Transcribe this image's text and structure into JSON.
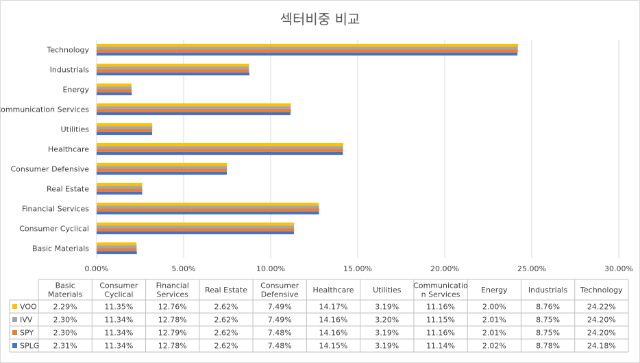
{
  "chart_data": {
    "type": "bar",
    "orientation": "horizontal",
    "title": "섹터비중 비교",
    "xlim": [
      0,
      30
    ],
    "x_ticks": [
      "0.00%",
      "5.00%",
      "10.00%",
      "15.00%",
      "20.00%",
      "25.00%",
      "30.00%"
    ],
    "grid": "vertical gridlines",
    "legend": "data table, left column",
    "categories": [
      "Basic Materials",
      "Consumer Cyclical",
      "Financial Services",
      "Real Estate",
      "Consumer Defensive",
      "Healthcare",
      "Utilities",
      "Communication Services",
      "Energy",
      "Industrials",
      "Technology"
    ],
    "table_headers": [
      "Basic Materials",
      "Consumer Cyclical",
      "Financial Services",
      "Real Estate",
      "Consumer Defensive",
      "Healthcare",
      "Utilities",
      "Communicatio n Services",
      "Energy",
      "Industrials",
      "Technology"
    ],
    "series": [
      {
        "name": "VOO",
        "color": "#FFC000",
        "values": [
          2.29,
          11.35,
          12.76,
          2.62,
          7.49,
          14.17,
          3.19,
          11.16,
          2.0,
          8.76,
          24.22
        ],
        "labels": [
          "2.29%",
          "11.35%",
          "12.76%",
          "2.62%",
          "7.49%",
          "14.17%",
          "3.19%",
          "11.16%",
          "2.00%",
          "8.76%",
          "24.22%"
        ]
      },
      {
        "name": "IVV",
        "color": "#A5A5A5",
        "values": [
          2.3,
          11.34,
          12.78,
          2.62,
          7.49,
          14.16,
          3.2,
          11.15,
          2.01,
          8.75,
          24.2
        ],
        "labels": [
          "2.30%",
          "11.34%",
          "12.78%",
          "2.62%",
          "7.49%",
          "14.16%",
          "3.20%",
          "11.15%",
          "2.01%",
          "8.75%",
          "24.20%"
        ]
      },
      {
        "name": "SPY",
        "color": "#ED7D31",
        "values": [
          2.3,
          11.34,
          12.79,
          2.62,
          7.48,
          14.16,
          3.19,
          11.16,
          2.01,
          8.75,
          24.2
        ],
        "labels": [
          "2.30%",
          "11.34%",
          "12.79%",
          "2.62%",
          "7.48%",
          "14.16%",
          "3.19%",
          "11.16%",
          "2.01%",
          "8.75%",
          "24.20%"
        ]
      },
      {
        "name": "SPLG",
        "color": "#4472C4",
        "values": [
          2.31,
          11.34,
          12.78,
          2.62,
          7.48,
          14.15,
          3.19,
          11.14,
          2.02,
          8.78,
          24.18
        ],
        "labels": [
          "2.31%",
          "11.34%",
          "12.78%",
          "2.62%",
          "7.48%",
          "14.15%",
          "3.19%",
          "11.14%",
          "2.02%",
          "8.78%",
          "24.18%"
        ]
      }
    ]
  }
}
